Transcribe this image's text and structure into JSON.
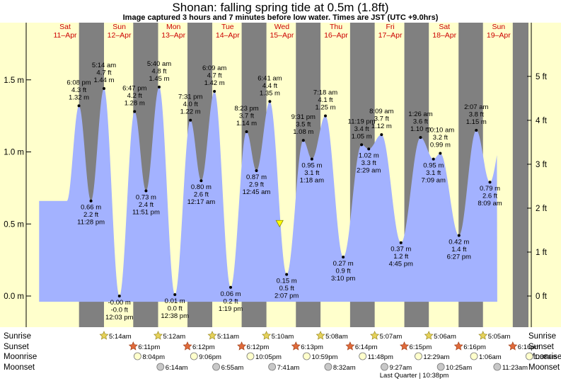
{
  "title": "Shonan: falling  spring tide at 0.5m (1.8ft)",
  "subtitle": "Image captured 3 hours and 7 minutes before low water. Times are JST (UTC +9.0hrs)",
  "colors": {
    "water": "#a3b2ff",
    "day_bg": "#ffffcc",
    "night_bg": "#808080",
    "day_label": "#cc0000",
    "now_marker": "#ffff00"
  },
  "days": [
    {
      "day": "Sat",
      "date": "11–Apr"
    },
    {
      "day": "Sun",
      "date": "12–Apr"
    },
    {
      "day": "Mon",
      "date": "13–Apr"
    },
    {
      "day": "Tue",
      "date": "14–Apr"
    },
    {
      "day": "Wed",
      "date": "15–Apr"
    },
    {
      "day": "Thu",
      "date": "16–Apr"
    },
    {
      "day": "Fri",
      "date": "17–Apr"
    },
    {
      "day": "Sat",
      "date": "18–Apr"
    },
    {
      "day": "Sun",
      "date": "19–Apr"
    }
  ],
  "chart_data": {
    "type": "area",
    "x_unit": "hours from 00:00 JST 11-Apr",
    "y_left": {
      "unit": "m",
      "range": [
        -0.12,
        1.77
      ],
      "ticks": [
        0.0,
        0.5,
        1.0,
        1.5
      ],
      "tick_labels": [
        "0.0 m",
        "0.5 m",
        "1.0 m",
        "1.5 m"
      ]
    },
    "y_right": {
      "unit": "ft",
      "ticks": [
        0,
        1,
        2,
        3,
        4,
        5
      ],
      "tick_labels": [
        "0 ft",
        "1 ft",
        "2 ft",
        "3 ft",
        "4 ft",
        "5 ft"
      ]
    },
    "now": {
      "time": "Wed 15-Apr 11:00",
      "height_m": 0.5
    },
    "extremes": [
      {
        "type": "high",
        "time": "6:08 pm",
        "day": 0,
        "hour": 18.13,
        "m": "1.32 m",
        "ft": "4.3 ft",
        "h": 1.32
      },
      {
        "type": "low",
        "time": "11:28 pm",
        "day": 0,
        "hour": 23.47,
        "m": "0.66 m",
        "ft": "2.2 ft",
        "h": 0.66
      },
      {
        "type": "high",
        "time": "5:14 am",
        "day": 1,
        "hour": 5.23,
        "m": "1.44 m",
        "ft": "4.7 ft",
        "h": 1.44
      },
      {
        "type": "low",
        "time": "12:03 pm",
        "day": 1,
        "hour": 12.05,
        "m": "-0.00 m",
        "ft": "-0.0 ft",
        "h": 0.0
      },
      {
        "type": "high",
        "time": "6:47 pm",
        "day": 1,
        "hour": 18.78,
        "m": "1.28 m",
        "ft": "4.2 ft",
        "h": 1.28
      },
      {
        "type": "low",
        "time": "11:51 pm",
        "day": 1,
        "hour": 23.85,
        "m": "0.73 m",
        "ft": "2.4 ft",
        "h": 0.73
      },
      {
        "type": "high",
        "time": "5:40 am",
        "day": 2,
        "hour": 5.67,
        "m": "1.45 m",
        "ft": "4.8 ft",
        "h": 1.45
      },
      {
        "type": "low",
        "time": "12:38 pm",
        "day": 2,
        "hour": 12.63,
        "m": "0.01 m",
        "ft": "0.0 ft",
        "h": 0.01
      },
      {
        "type": "high",
        "time": "7:31 pm",
        "day": 2,
        "hour": 19.52,
        "m": "1.22 m",
        "ft": "4.0 ft",
        "h": 1.22
      },
      {
        "type": "low",
        "time": "12:17 am",
        "day": 3,
        "hour": 0.28,
        "m": "0.80 m",
        "ft": "2.6 ft",
        "h": 0.8
      },
      {
        "type": "high",
        "time": "6:09 am",
        "day": 3,
        "hour": 6.15,
        "m": "1.42 m",
        "ft": "4.7 ft",
        "h": 1.42
      },
      {
        "type": "low",
        "time": "1:19 pm",
        "day": 3,
        "hour": 13.32,
        "m": "0.06 m",
        "ft": "0.2 ft",
        "h": 0.06
      },
      {
        "type": "high",
        "time": "8:23 pm",
        "day": 3,
        "hour": 20.38,
        "m": "1.14 m",
        "ft": "3.7 ft",
        "h": 1.14
      },
      {
        "type": "low",
        "time": "12:45 am",
        "day": 4,
        "hour": 0.75,
        "m": "0.87 m",
        "ft": "2.9 ft",
        "h": 0.87
      },
      {
        "type": "high",
        "time": "6:41 am",
        "day": 4,
        "hour": 6.68,
        "m": "1.35 m",
        "ft": "4.4 ft",
        "h": 1.35
      },
      {
        "type": "low",
        "time": "2:07 pm",
        "day": 4,
        "hour": 14.12,
        "m": "0.15 m",
        "ft": "0.5 ft",
        "h": 0.15
      },
      {
        "type": "high",
        "time": "9:31 pm",
        "day": 4,
        "hour": 21.52,
        "m": "1.08 m",
        "ft": "3.5 ft",
        "h": 1.08
      },
      {
        "type": "low",
        "time": "1:18 am",
        "day": 5,
        "hour": 1.3,
        "m": "0.95 m",
        "ft": "3.1 ft",
        "h": 0.95
      },
      {
        "type": "high",
        "time": "7:18 am",
        "day": 5,
        "hour": 7.3,
        "m": "1.25 m",
        "ft": "4.1 ft",
        "h": 1.25
      },
      {
        "type": "low",
        "time": "3:10 pm",
        "day": 5,
        "hour": 15.17,
        "m": "0.27 m",
        "ft": "0.9 ft",
        "h": 0.27
      },
      {
        "type": "high",
        "time": "11:19 pm",
        "day": 5,
        "hour": 23.32,
        "m": "1.05 m",
        "ft": "3.4 ft",
        "h": 1.05
      },
      {
        "type": "low",
        "time": "2:29 am",
        "day": 6,
        "hour": 2.48,
        "m": "1.02 m",
        "ft": "3.3 ft",
        "h": 1.02
      },
      {
        "type": "high",
        "time": "8:09 am",
        "day": 6,
        "hour": 8.15,
        "m": "1.12 m",
        "ft": "3.7 ft",
        "h": 1.12
      },
      {
        "type": "low",
        "time": "4:45 pm",
        "day": 6,
        "hour": 16.75,
        "m": "0.37 m",
        "ft": "1.2 ft",
        "h": 0.37
      },
      {
        "type": "high",
        "time": "1:26 am",
        "day": 7,
        "hour": 1.43,
        "m": "1.10 m",
        "ft": "3.6 ft",
        "h": 1.1
      },
      {
        "type": "low",
        "time": "7:09 am",
        "day": 7,
        "hour": 7.15,
        "m": "0.95 m",
        "ft": "3.1 ft",
        "h": 0.95
      },
      {
        "type": "high",
        "time": "10:10 am",
        "day": 7,
        "hour": 10.17,
        "m": "0.99 m",
        "ft": "3.2 ft",
        "h": 0.99
      },
      {
        "type": "low",
        "time": "6:27 pm",
        "day": 7,
        "hour": 18.45,
        "m": "0.42 m",
        "ft": "1.4 ft",
        "h": 0.42
      },
      {
        "type": "high",
        "time": "2:07 am",
        "day": 8,
        "hour": 2.12,
        "m": "1.15 m",
        "ft": "3.8 ft",
        "h": 1.15
      },
      {
        "type": "low",
        "time": "8:09 am",
        "day": 8,
        "hour": 8.15,
        "m": "0.79 m",
        "ft": "2.6 ft",
        "h": 0.79
      }
    ]
  },
  "sun_moon": {
    "row_labels": {
      "sunrise": "Sunrise",
      "sunset": "Sunset",
      "moonrise": "Moonrise",
      "moonset": "Moonset"
    },
    "sunrise": [
      {
        "day": 1,
        "hour": 5.23,
        "time": "5:14am"
      },
      {
        "day": 2,
        "hour": 5.2,
        "time": "5:12am"
      },
      {
        "day": 3,
        "hour": 5.18,
        "time": "5:11am"
      },
      {
        "day": 4,
        "hour": 5.17,
        "time": "5:10am"
      },
      {
        "day": 5,
        "hour": 5.13,
        "time": "5:08am"
      },
      {
        "day": 6,
        "hour": 5.12,
        "time": "5:07am"
      },
      {
        "day": 7,
        "hour": 5.1,
        "time": "5:06am"
      },
      {
        "day": 8,
        "hour": 5.08,
        "time": "5:05am"
      }
    ],
    "sunset": [
      {
        "day": 1,
        "hour": 18.18,
        "time": "6:11pm"
      },
      {
        "day": 2,
        "hour": 18.2,
        "time": "6:12pm"
      },
      {
        "day": 3,
        "hour": 18.2,
        "time": "6:12pm"
      },
      {
        "day": 4,
        "hour": 18.22,
        "time": "6:13pm"
      },
      {
        "day": 5,
        "hour": 18.23,
        "time": "6:14pm"
      },
      {
        "day": 6,
        "hour": 18.25,
        "time": "6:15pm"
      },
      {
        "day": 7,
        "hour": 18.27,
        "time": "6:16pm"
      },
      {
        "day": 8,
        "hour": 18.27,
        "time": "6:16pm"
      }
    ],
    "moonrise": [
      {
        "day": 1,
        "hour": 20.07,
        "time": "8:04pm"
      },
      {
        "day": 2,
        "hour": 21.1,
        "time": "9:06pm"
      },
      {
        "day": 3,
        "hour": 22.08,
        "time": "10:05pm"
      },
      {
        "day": 4,
        "hour": 22.98,
        "time": "10:59pm"
      },
      {
        "day": 5,
        "hour": 23.8,
        "time": "11:48pm"
      },
      {
        "day": 7,
        "hour": 0.48,
        "time": "12:29am"
      },
      {
        "day": 8,
        "hour": 1.1,
        "time": "1:06am"
      },
      {
        "day": 9,
        "hour": 1.63,
        "time": "1:38am"
      }
    ],
    "moonset": [
      {
        "day": 2,
        "hour": 6.23,
        "time": "6:14am"
      },
      {
        "day": 3,
        "hour": 6.92,
        "time": "6:55am"
      },
      {
        "day": 4,
        "hour": 7.68,
        "time": "7:41am"
      },
      {
        "day": 5,
        "hour": 8.53,
        "time": "8:32am"
      },
      {
        "day": 6,
        "hour": 9.45,
        "time": "9:27am"
      },
      {
        "day": 7,
        "hour": 10.42,
        "time": "10:25am"
      },
      {
        "day": 8,
        "hour": 11.38,
        "time": "11:23am"
      }
    ],
    "moon_phase": "Last Quarter | 10:38pm"
  }
}
